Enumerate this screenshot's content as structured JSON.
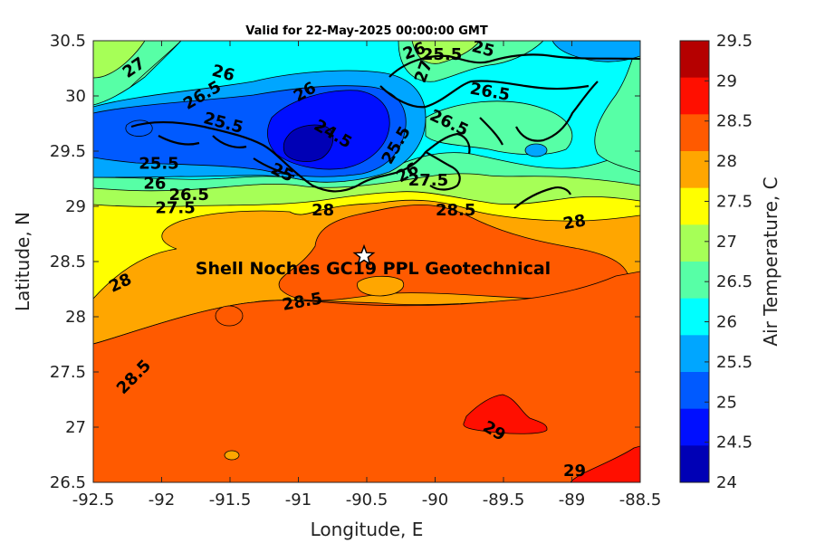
{
  "title": "Valid for 22-May-2025 00:00:00 GMT",
  "x_axis": {
    "label": "Longitude, E",
    "ticks": [
      "-92.5",
      "-92",
      "-91.5",
      "-91",
      "-90.5",
      "-90",
      "-89.5",
      "-89",
      "-88.5"
    ]
  },
  "y_axis": {
    "label": "Latitude, N",
    "ticks": [
      "30.5",
      "30",
      "29.5",
      "29",
      "28.5",
      "28",
      "27.5",
      "27",
      "26.5"
    ]
  },
  "colorbar": {
    "label": "Air Temperature, C",
    "ticks": [
      "29.5",
      "29",
      "28.5",
      "28",
      "27.5",
      "27",
      "26.5",
      "26",
      "25.5",
      "25",
      "24.5",
      "24"
    ],
    "colors": [
      "#b50000",
      "#ff0f00",
      "#ff5a00",
      "#ffa600",
      "#ffff00",
      "#a6ff57",
      "#57ffa6",
      "#00ffff",
      "#00a6ff",
      "#005aff",
      "#000fff",
      "#0000b5"
    ]
  },
  "site": {
    "name": "Shell Noches   GC19 PPL  Geotechnical",
    "marker": "star-icon",
    "lon": -90.52,
    "lat": 28.55
  },
  "contour_labels": [
    {
      "text": "27",
      "lon": -92.2,
      "lat": 30.25,
      "rot": -35
    },
    {
      "text": "26",
      "lon": -91.55,
      "lat": 30.2,
      "rot": 15
    },
    {
      "text": "26.5",
      "lon": -91.7,
      "lat": 30.0,
      "rot": -30
    },
    {
      "text": "26",
      "lon": -90.95,
      "lat": 30.03,
      "rot": -30
    },
    {
      "text": "25.5",
      "lon": -91.55,
      "lat": 29.75,
      "rot": 15
    },
    {
      "text": "24.5",
      "lon": -90.75,
      "lat": 29.65,
      "rot": 30
    },
    {
      "text": "25.5",
      "lon": -92.02,
      "lat": 29.38,
      "rot": 0
    },
    {
      "text": "26",
      "lon": -92.05,
      "lat": 29.2,
      "rot": 0
    },
    {
      "text": "26.5",
      "lon": -91.8,
      "lat": 29.1,
      "rot": 0
    },
    {
      "text": "27.5",
      "lon": -91.9,
      "lat": 28.98,
      "rot": 0
    },
    {
      "text": "25",
      "lon": -91.12,
      "lat": 29.3,
      "rot": 25
    },
    {
      "text": "28",
      "lon": -90.82,
      "lat": 28.96,
      "rot": 0
    },
    {
      "text": "25.5",
      "lon": -90.28,
      "lat": 29.55,
      "rot": -60
    },
    {
      "text": "26",
      "lon": -90.2,
      "lat": 29.3,
      "rot": -30
    },
    {
      "text": "27.5",
      "lon": -90.05,
      "lat": 29.23,
      "rot": 0
    },
    {
      "text": "26.5",
      "lon": -89.9,
      "lat": 29.75,
      "rot": 25
    },
    {
      "text": "26.5",
      "lon": -89.6,
      "lat": 30.03,
      "rot": 10
    },
    {
      "text": "26",
      "lon": -90.15,
      "lat": 30.4,
      "rot": -20
    },
    {
      "text": "25.5",
      "lon": -89.95,
      "lat": 30.37,
      "rot": 0
    },
    {
      "text": "25",
      "lon": -89.65,
      "lat": 30.42,
      "rot": 15
    },
    {
      "text": "27",
      "lon": -90.08,
      "lat": 30.22,
      "rot": -70
    },
    {
      "text": "28.5",
      "lon": -89.85,
      "lat": 28.96,
      "rot": 0
    },
    {
      "text": "28",
      "lon": -88.98,
      "lat": 28.85,
      "rot": -10
    },
    {
      "text": "28",
      "lon": -92.3,
      "lat": 28.3,
      "rot": -25
    },
    {
      "text": "28.5",
      "lon": -90.97,
      "lat": 28.13,
      "rot": -10
    },
    {
      "text": "28.5",
      "lon": -92.2,
      "lat": 27.45,
      "rot": -45
    },
    {
      "text": "29",
      "lon": -89.57,
      "lat": 26.96,
      "rot": 30
    },
    {
      "text": "29",
      "lon": -88.98,
      "lat": 26.6,
      "rot": 0
    }
  ]
}
